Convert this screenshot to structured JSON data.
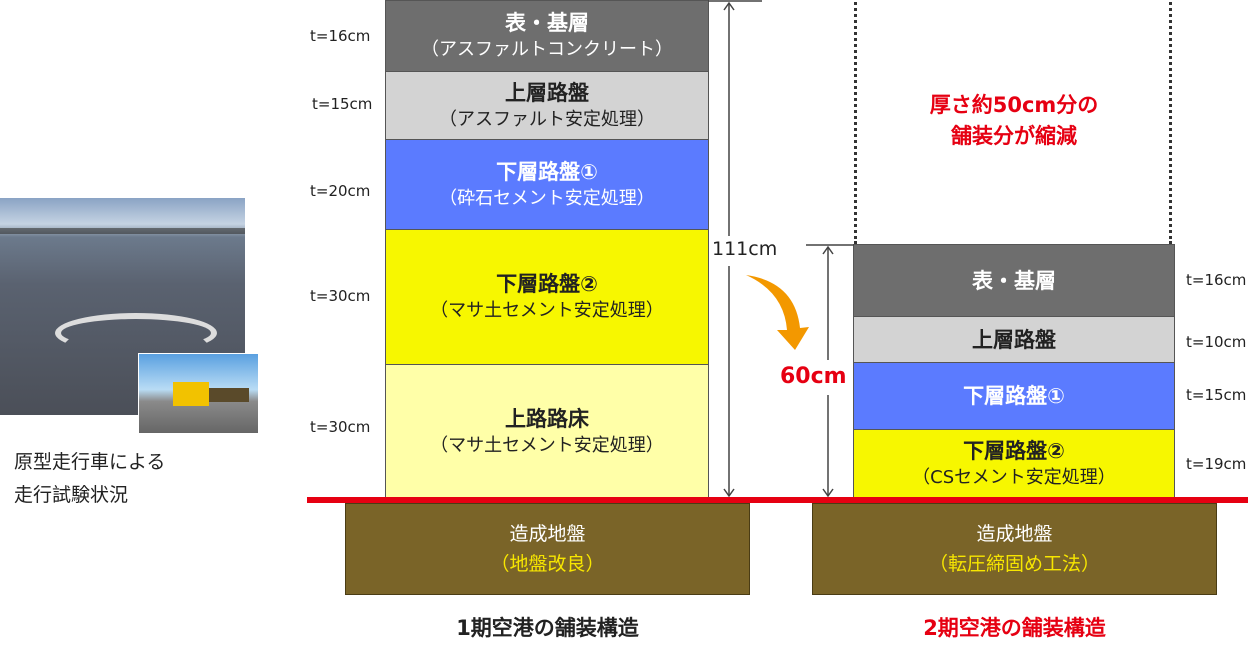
{
  "photo": {
    "caption_line1": "原型走行車による",
    "caption_line2": "走行試験状況"
  },
  "phase1": {
    "title": "1期空港の舗装構造",
    "total": "111cm",
    "layers": [
      {
        "name": "表・基層",
        "sub": "（アスファルトコンクリート）",
        "thickness": "t=16cm",
        "color": "#6e6e6e"
      },
      {
        "name": "上層路盤",
        "sub": "（アスファルト安定処理）",
        "thickness": "t=15cm",
        "color": "#d3d3d3"
      },
      {
        "name": "下層路盤①",
        "sub": "（砕石セメント安定処理）",
        "thickness": "t=20cm",
        "color": "#5b7bff"
      },
      {
        "name": "下層路盤②",
        "sub": "（マサ土セメント安定処理）",
        "thickness": "t=30cm",
        "color": "#f7f700"
      },
      {
        "name": "上路路床",
        "sub": "（マサ土セメント安定処理）",
        "thickness": "t=30cm",
        "color": "#ffffa8"
      }
    ],
    "ground": {
      "name": "造成地盤",
      "sub": "（地盤改良）"
    }
  },
  "phase2": {
    "title": "2期空港の舗装構造",
    "total": "60cm",
    "reduction_line1": "厚さ約50cm分の",
    "reduction_line2": "舗装分が縮減",
    "layers": [
      {
        "name": "表・基層",
        "thickness": "t=16cm",
        "color": "#6e6e6e"
      },
      {
        "name": "上層路盤",
        "thickness": "t=10cm",
        "color": "#d3d3d3"
      },
      {
        "name": "下層路盤①",
        "thickness": "t=15cm",
        "color": "#5b7bff"
      },
      {
        "name": "下層路盤②",
        "sub": "（CSセメント安定処理）",
        "thickness": "t=19cm",
        "color": "#f7f700"
      }
    ],
    "ground": {
      "name": "造成地盤",
      "sub": "（転圧締固め工法）"
    }
  },
  "colors": {
    "accent_red": "#e60012",
    "arrow_orange": "#f39800",
    "ground": "#7a6428"
  }
}
